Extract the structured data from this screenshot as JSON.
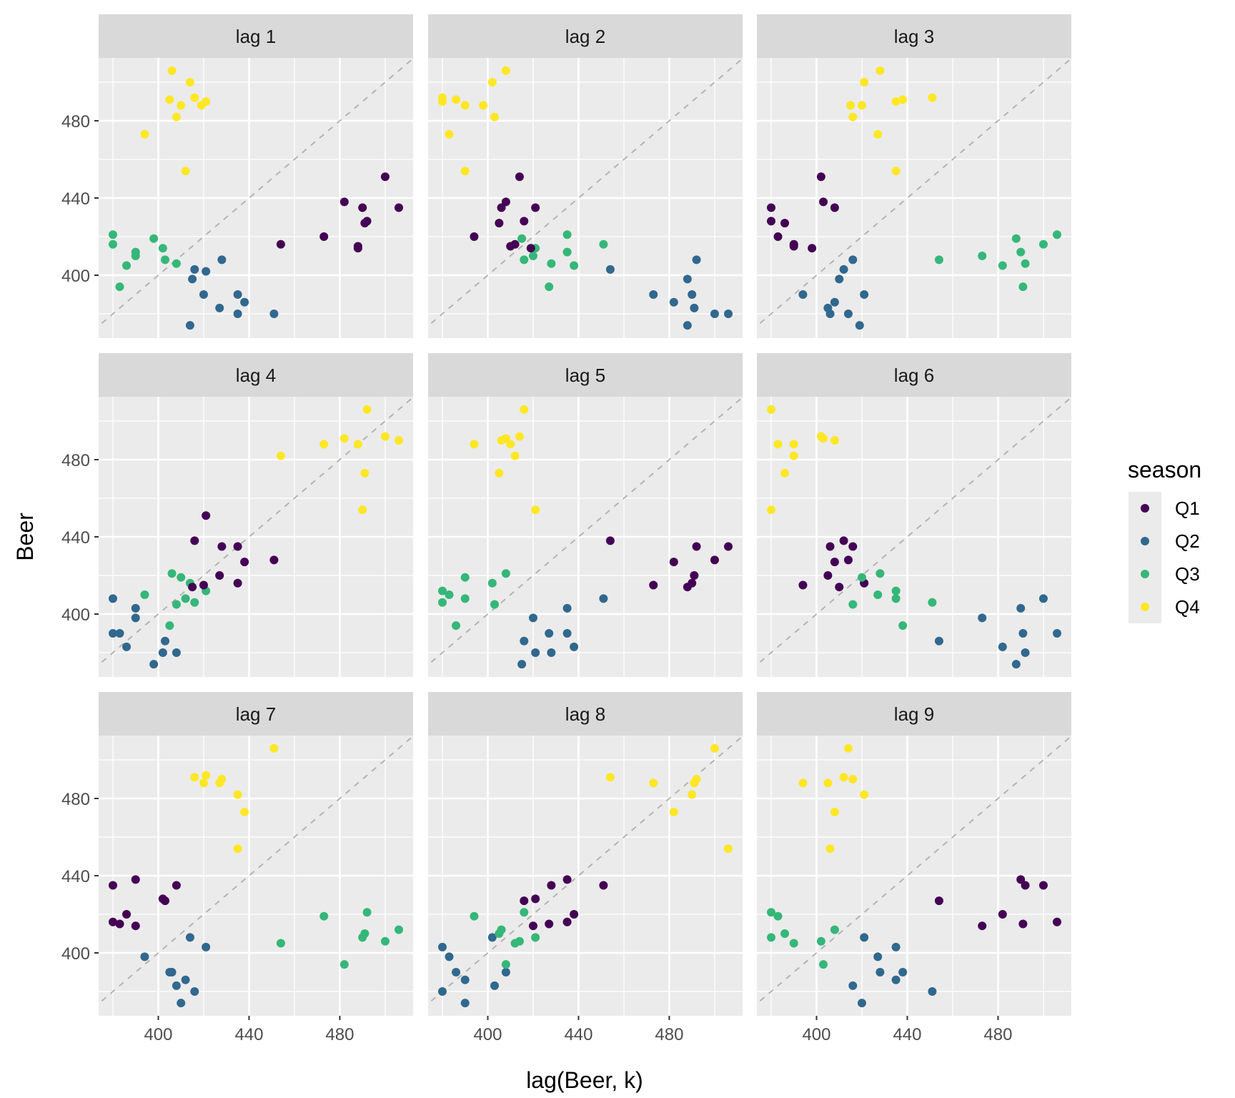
{
  "chart_data": {
    "type": "scatter",
    "title": "",
    "xlabel": "lag(Beer, k)",
    "ylabel": "Beer",
    "xlim": [
      373.7,
      512.3
    ],
    "ylim": [
      367.4,
      512.6
    ],
    "x_major_ticks": [
      400,
      440,
      480
    ],
    "y_major_ticks": [
      400,
      440,
      480
    ],
    "x_minor_ticks": [
      380,
      420,
      460,
      500
    ],
    "y_minor_ticks": [
      380,
      420,
      460,
      500
    ],
    "x_tick_labels": [
      "400",
      "440",
      "480"
    ],
    "y_tick_labels": [
      "400",
      "440",
      "480"
    ],
    "grid": true,
    "reference_line": "y = x (dashed)",
    "facets": [
      "lag 1",
      "lag 2",
      "lag 3",
      "lag 4",
      "lag 5",
      "lag 6",
      "lag 7",
      "lag 8",
      "lag 9"
    ],
    "lags": [
      1,
      2,
      3,
      4,
      5,
      6,
      7,
      8,
      9
    ],
    "series_start_quarter": "Q1",
    "beer_series": [
      421,
      402,
      414,
      500,
      451,
      380,
      416,
      492,
      428,
      408,
      406,
      506,
      435,
      380,
      421,
      490,
      435,
      390,
      412,
      454,
      416,
      403,
      408,
      482,
      438,
      386,
      405,
      491,
      427,
      383,
      394,
      473,
      420,
      390,
      410,
      488,
      415,
      398,
      419,
      488,
      414,
      374
    ],
    "legend": {
      "title": "season",
      "position": "right",
      "entries": [
        "Q1",
        "Q2",
        "Q3",
        "Q4"
      ],
      "colors": [
        "#440154",
        "#31688E",
        "#35B779",
        "#FDE725"
      ]
    }
  }
}
